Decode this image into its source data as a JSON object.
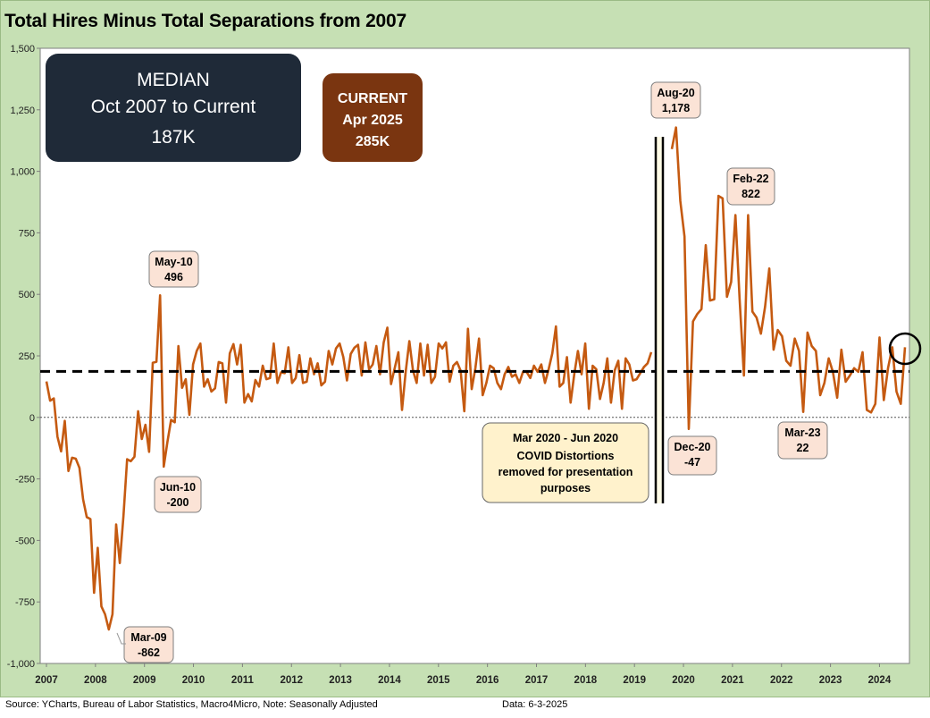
{
  "title": "Total Hires Minus Total Separations from 2007",
  "footer": {
    "source": "Source: YCharts, Bureau of Labor Statistics, Macro4Micro, Note: Seasonally Adjusted",
    "date": "Data: 6-3-2025"
  },
  "colors": {
    "line": "#c55a11",
    "frame": "#c6e0b4",
    "median_box": "#1f2a38",
    "current_box": "#7a3510",
    "label_box": "#fbe3d6",
    "covid_box": "#fff2cc"
  },
  "median_box": {
    "line1": "MEDIAN",
    "line2": "Oct 2007 to Current",
    "line3": "187K"
  },
  "current_box": {
    "line1": "CURRENT",
    "line2": "Apr 2025",
    "line3": "285K"
  },
  "covid_note": {
    "line1": "Mar 2020 - Jun 2020",
    "line2": "COVID Distortions",
    "line3": "removed for presentation",
    "line4": "purposes"
  },
  "chart_data": {
    "type": "line",
    "title": "Total Hires Minus Total Separations from 2007",
    "xlabel": "",
    "ylabel": "",
    "ylim": [
      -1000,
      1500
    ],
    "yticks": [
      -1000,
      -750,
      -500,
      -250,
      0,
      250,
      500,
      750,
      1000,
      1250,
      1500
    ],
    "ytick_labels": [
      "-1,000",
      "-750",
      "-500",
      "-250",
      "0",
      "250",
      "500",
      "750",
      "1,000",
      "1,250",
      "1,500"
    ],
    "xtick_labels": [
      "2007",
      "2008",
      "2009",
      "2010",
      "2011",
      "2012",
      "2013",
      "2014",
      "2015",
      "2016",
      "2017",
      "2018",
      "2019",
      "2020",
      "2021",
      "2022",
      "2023",
      "2024"
    ],
    "median_line": 187,
    "zero_line": 0,
    "grid": false,
    "series": [
      {
        "segment": "pre-covid",
        "values": [
          146,
          68,
          77,
          -78,
          -138,
          -14,
          -218,
          -164,
          -168,
          -205,
          -333,
          -405,
          -413,
          -713,
          -530,
          -768,
          -800,
          -862,
          -800,
          -435,
          -592,
          -400,
          -170,
          -178,
          -160,
          25,
          -88,
          -30,
          -140,
          222,
          226,
          496,
          -200,
          -100,
          -10,
          -20,
          290,
          120,
          155,
          10,
          215,
          270,
          300,
          125,
          155,
          105,
          118,
          225,
          220,
          60,
          260,
          298,
          215,
          295,
          60,
          95,
          65,
          152,
          125,
          210,
          155,
          160,
          300,
          140,
          183,
          180,
          285,
          140,
          160,
          253,
          140,
          145,
          240,
          175,
          220,
          130,
          145,
          270,
          215,
          280,
          300,
          245,
          150,
          258,
          283,
          295,
          170,
          305,
          195,
          215,
          290,
          175,
          305,
          365,
          135,
          200,
          265,
          30,
          185,
          310,
          190,
          140,
          300,
          170,
          295,
          140,
          165,
          300,
          280,
          305,
          145,
          210,
          225,
          190,
          25,
          360,
          115,
          200,
          320,
          90,
          140,
          210,
          200,
          140,
          115,
          175,
          205,
          165,
          175,
          140,
          185,
          185,
          160,
          210,
          185,
          215,
          140,
          195,
          260,
          370,
          125,
          140,
          245,
          60,
          175,
          270,
          175,
          300,
          35,
          210,
          195,
          75,
          140,
          240,
          60,
          190,
          230,
          35,
          240,
          215,
          150,
          155,
          180,
          205,
          220,
          265
        ]
      },
      {
        "segment": "post-covid",
        "values": [
          1090,
          1178,
          880,
          735,
          -47,
          390,
          420,
          440,
          700,
          475,
          480,
          900,
          890,
          490,
          550,
          822,
          480,
          170,
          822,
          430,
          405,
          340,
          450,
          605,
          275,
          355,
          330,
          230,
          210,
          320,
          270,
          22,
          345,
          290,
          270,
          90,
          140,
          240,
          185,
          80,
          275,
          145,
          170,
          200,
          185,
          265,
          30,
          20,
          55,
          325,
          70,
          200,
          285,
          105,
          55,
          285
        ]
      }
    ],
    "annotations": [
      {
        "label": "May-10",
        "value": "496"
      },
      {
        "label": "Jun-10",
        "value": "-200"
      },
      {
        "label": "Mar-09",
        "value": "-862"
      },
      {
        "label": "Aug-20",
        "value": "1,178"
      },
      {
        "label": "Dec-20",
        "value": "-47"
      },
      {
        "label": "Feb-22",
        "value": "822"
      },
      {
        "label": "Mar-23",
        "value": "22"
      }
    ]
  }
}
